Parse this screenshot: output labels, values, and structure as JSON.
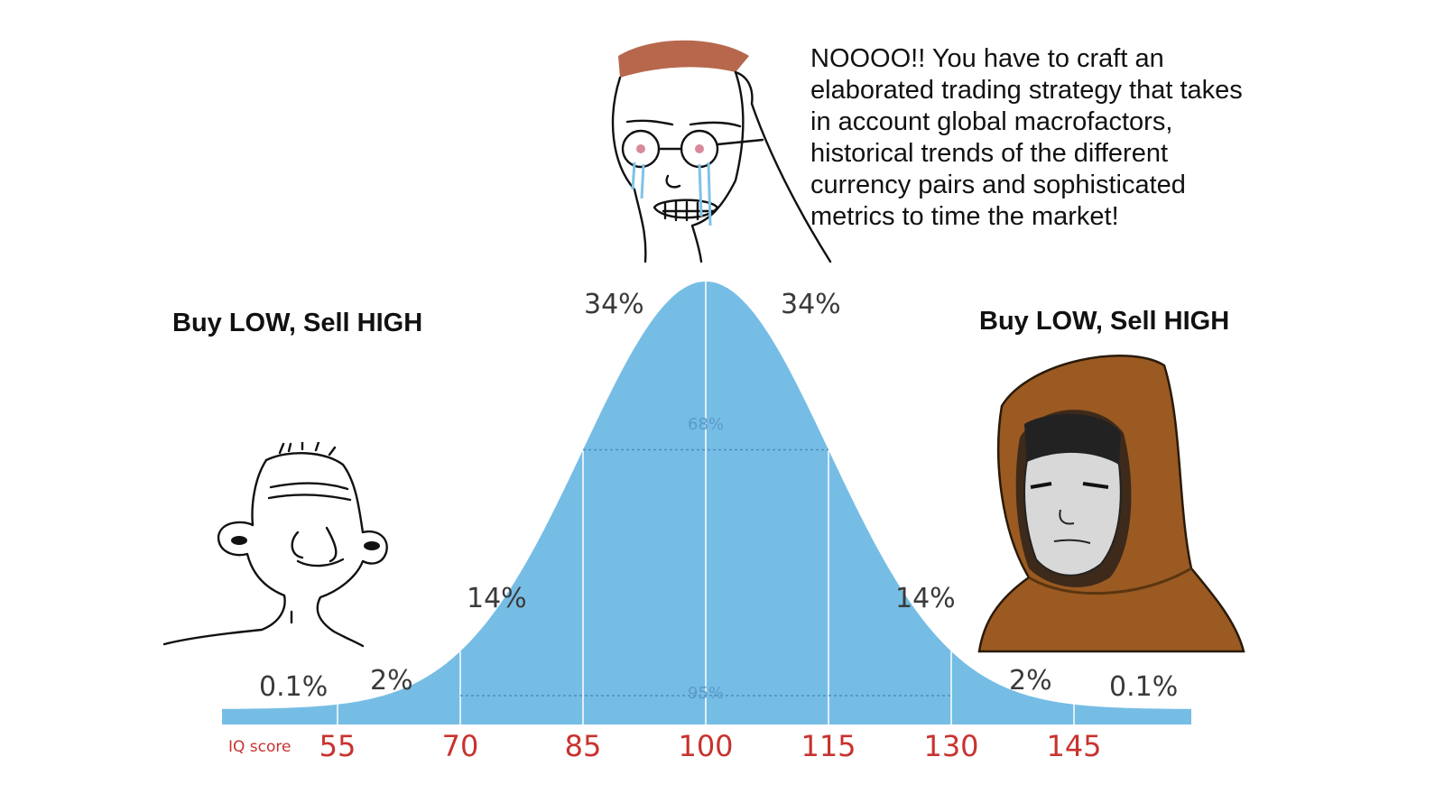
{
  "meme": {
    "left_caption": "Buy LOW, Sell HIGH",
    "right_caption": "Buy LOW, Sell HIGH",
    "middle_quote": "NOOOO!! You have to craft an\nelaborated trading strategy that takes\nin account global macrofactors,\nhistorical trends of the different\ncurrency pairs and sophisticated\nmetrics to time the market!"
  },
  "distribution": {
    "band_percents": {
      "far_left": "0.1%",
      "left_2": "2%",
      "left_14": "14%",
      "left_34": "34%",
      "right_34": "34%",
      "right_14": "14%",
      "right_2": "2%",
      "far_right": "0.1%"
    },
    "inner_label": "68%",
    "outer_label": "95%",
    "axis_title": "IQ score",
    "ticks": [
      "55",
      "70",
      "85",
      "100",
      "115",
      "130",
      "145"
    ],
    "mean": 100,
    "sd": 15,
    "fill_color": "#76bde5",
    "tick_color": "#c8332f"
  },
  "characters": {
    "left": "wojak-face-icon",
    "middle": "crying-nerd-face-icon",
    "right": "hooded-figure-icon"
  }
}
